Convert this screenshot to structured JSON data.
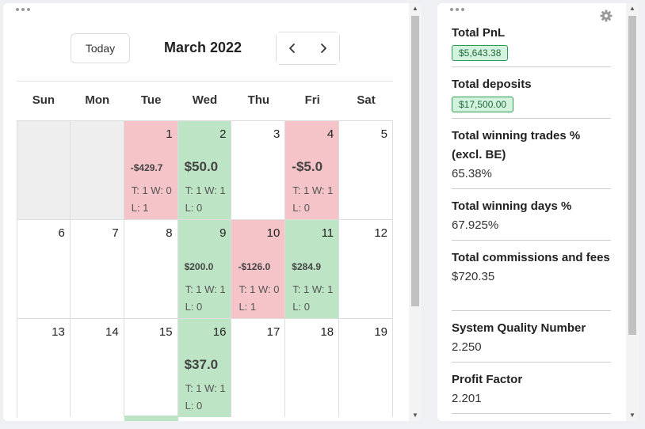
{
  "calendar": {
    "today_label": "Today",
    "month_title": "March 2022",
    "weekdays": [
      "Sun",
      "Mon",
      "Tue",
      "Wed",
      "Thu",
      "Fri",
      "Sat"
    ],
    "weeks": [
      [
        {
          "num": "",
          "type": "empty"
        },
        {
          "num": "",
          "type": "empty"
        },
        {
          "num": "1",
          "type": "loss",
          "pnl": "-$429.7",
          "size": "sm",
          "trades": "T: 1 W: 0 L: 1"
        },
        {
          "num": "2",
          "type": "win",
          "pnl": "$50.0",
          "size": "lg",
          "trades": "T: 1 W: 1 L: 0"
        },
        {
          "num": "3",
          "type": "plain"
        },
        {
          "num": "4",
          "type": "loss",
          "pnl": "-$5.0",
          "size": "lg",
          "trades": "T: 1 W: 1 L: 0"
        },
        {
          "num": "5",
          "type": "plain"
        }
      ],
      [
        {
          "num": "6",
          "type": "plain"
        },
        {
          "num": "7",
          "type": "plain"
        },
        {
          "num": "8",
          "type": "plain"
        },
        {
          "num": "9",
          "type": "win",
          "pnl": "$200.0",
          "size": "sm",
          "trades": "T: 1 W: 1 L: 0"
        },
        {
          "num": "10",
          "type": "loss",
          "pnl": "-$126.0",
          "size": "sm",
          "trades": "T: 1 W: 0 L: 1"
        },
        {
          "num": "11",
          "type": "win",
          "pnl": "$284.9",
          "size": "sm",
          "trades": "T: 1 W: 1 L: 0"
        },
        {
          "num": "12",
          "type": "plain"
        }
      ],
      [
        {
          "num": "13",
          "type": "plain"
        },
        {
          "num": "14",
          "type": "plain"
        },
        {
          "num": "15",
          "type": "plain"
        },
        {
          "num": "16",
          "type": "win",
          "pnl": "$37.0",
          "size": "lg",
          "trades": "T: 1 W: 1 L: 0"
        },
        {
          "num": "17",
          "type": "plain"
        },
        {
          "num": "18",
          "type": "plain"
        },
        {
          "num": "19",
          "type": "plain"
        }
      ]
    ]
  },
  "stats": {
    "total_pnl": {
      "label": "Total PnL",
      "value": "$5,643.38"
    },
    "total_deposits": {
      "label": "Total deposits",
      "value": "$17,500.00"
    },
    "winning_trades": {
      "label": "Total winning trades % (excl. BE)",
      "value": "65.38%"
    },
    "winning_days": {
      "label": "Total winning days %",
      "value": "67.925%"
    },
    "commissions": {
      "label": "Total commissions and fees",
      "value": "$720.35"
    },
    "sqn": {
      "label": "System Quality Number",
      "value": "2.250"
    },
    "profit_factor": {
      "label": "Profit Factor",
      "value": "2.201"
    }
  },
  "icons": {
    "menu": "more-dots-icon",
    "prev": "chevron-left-icon",
    "next": "chevron-right-icon",
    "settings": "gear-icon"
  },
  "colors": {
    "loss_day": "#f5c4c8",
    "win_day": "#bde5c5",
    "badge_bg": "#d4f3de",
    "badge_border": "#2e9a57"
  }
}
